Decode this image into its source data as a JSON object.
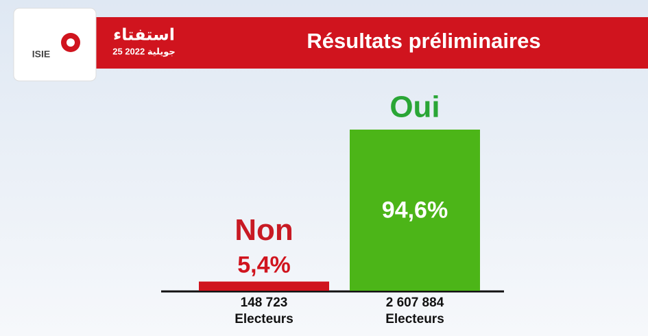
{
  "chart_data": {
    "type": "bar",
    "title": "Résultats préliminaires",
    "brand": {
      "name": "استفتاء",
      "date": "25 جويلية 2022",
      "org": "ISIE"
    },
    "categories": [
      "Non",
      "Oui"
    ],
    "values": [
      5.4,
      94.6
    ],
    "value_labels": [
      "5,4%",
      "94,6%"
    ],
    "colors": [
      "#d0141e",
      "#4cb518"
    ],
    "label_colors": [
      "#c81a24",
      "#2aa636"
    ],
    "voters": {
      "label": "Electeurs",
      "values": [
        148723,
        2607884
      ],
      "value_labels": [
        "148 723",
        "2 607 884"
      ]
    }
  }
}
